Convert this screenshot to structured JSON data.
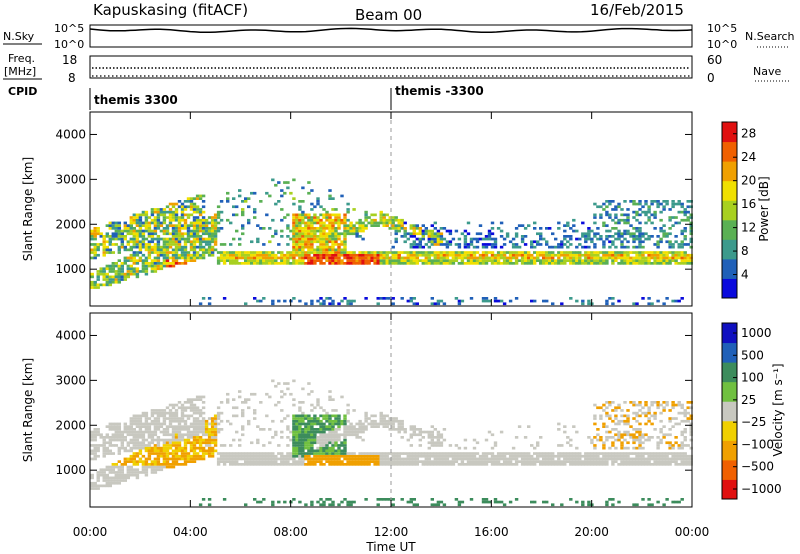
{
  "header": {
    "station": "Kapuskasing (fitACF)",
    "beam": "Beam 00",
    "date": "16/Feb/2015"
  },
  "noise_panel": {
    "left_label": "N.Sky",
    "left_ticks": [
      "10^5",
      "10^0"
    ],
    "right_ticks": [
      "10^5",
      "10^0"
    ],
    "right_label": "N.Search"
  },
  "freq_panel": {
    "left_label_top": "Freq.",
    "left_label_unit": "[MHz]",
    "left_ticks": [
      "18",
      "8"
    ],
    "right_ticks": [
      "60",
      "0"
    ],
    "right_label": "Nave"
  },
  "cpid_panel": {
    "label": "CPID",
    "modes": [
      "themis 3300",
      "themis -3300"
    ]
  },
  "colors": {
    "power_scale": [
      "#0a0adc",
      "#2060b8",
      "#3c9a8c",
      "#5ab054",
      "#a8d020",
      "#f0e000",
      "#f0a000",
      "#f06000",
      "#e01010"
    ],
    "velocity_scale": [
      "#e01010",
      "#f06000",
      "#f0a000",
      "#f0d000",
      "#c8c8c0",
      "#70c040",
      "#3c8c5c",
      "#2060b8",
      "#1010c0"
    ],
    "ground_scatter": "#c8c8c0"
  },
  "chart_data": [
    {
      "type": "heatmap",
      "name": "power",
      "ylabel": "Slant Range [km]",
      "yticks": [
        "1000",
        "2000",
        "3000",
        "4000"
      ],
      "ylim": [
        180,
        4500
      ],
      "xlim": [
        0,
        24
      ],
      "colorbar": {
        "label": "Power [dB]",
        "ticks": [
          "4",
          "8",
          "12",
          "16",
          "20",
          "24",
          "28"
        ],
        "range": [
          0,
          30
        ]
      }
    },
    {
      "type": "heatmap",
      "name": "velocity",
      "ylabel": "Slant Range [km]",
      "yticks": [
        "1000",
        "2000",
        "3000",
        "4000"
      ],
      "ylim": [
        180,
        4500
      ],
      "xlim": [
        0,
        24
      ],
      "xlabel": "Time UT",
      "xticks": [
        "00:00",
        "04:00",
        "08:00",
        "12:00",
        "16:00",
        "20:00",
        "00:00"
      ],
      "colorbar": {
        "label": "Velocity [m s⁻¹]",
        "ticks": [
          "1000",
          "500",
          "100",
          "25",
          "−25",
          "−100",
          "−500",
          "−1000"
        ]
      }
    }
  ]
}
